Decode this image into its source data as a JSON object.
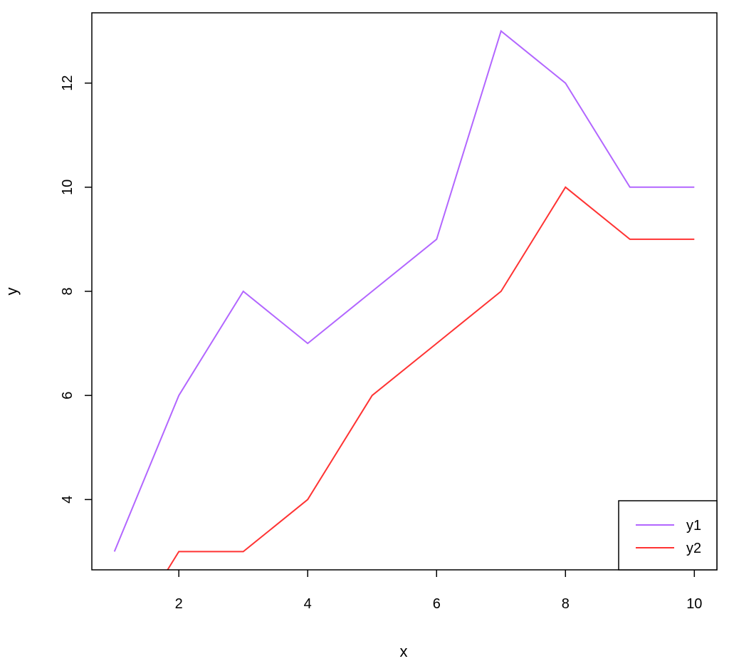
{
  "chart_data": {
    "type": "line",
    "title": "",
    "xlabel": "x",
    "ylabel": "y",
    "xlim": [
      0.65,
      10.35
    ],
    "ylim": [
      2.65,
      13.35
    ],
    "x_ticks": [
      2,
      4,
      6,
      8,
      10
    ],
    "y_ticks": [
      4,
      6,
      8,
      10,
      12
    ],
    "x": [
      1,
      2,
      3,
      4,
      5,
      6,
      7,
      8,
      9,
      10
    ],
    "series": [
      {
        "name": "y1",
        "color": "#B266FF",
        "values": [
          3,
          6,
          8,
          7,
          8,
          9,
          13,
          12,
          10,
          10
        ]
      },
      {
        "name": "y2",
        "color": "#FF3333",
        "values": [
          1,
          3,
          3,
          4,
          6,
          7,
          8,
          10,
          9,
          9
        ]
      }
    ],
    "grid": false,
    "legend": {
      "position": "bottom-right",
      "entries": [
        "y1",
        "y2"
      ]
    }
  }
}
